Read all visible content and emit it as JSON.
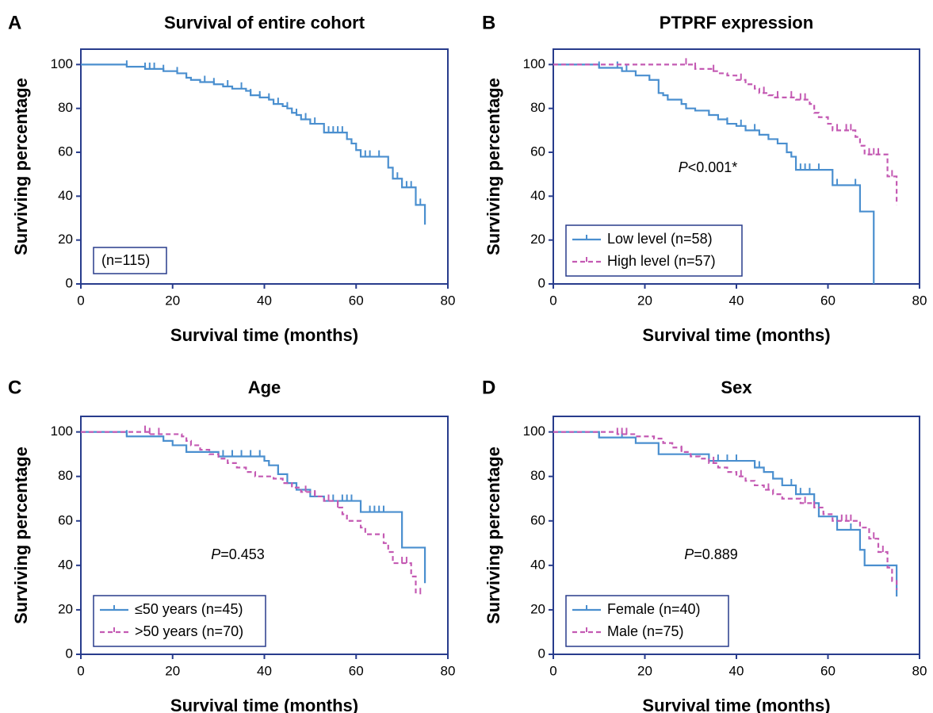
{
  "chart_data": [
    {
      "type": "line",
      "panel_label": "A",
      "title": "Survival of entire cohort",
      "xlabel": "Survival time (months)",
      "ylabel": "Surviving percentage",
      "xlim": [
        0,
        80
      ],
      "ylim": [
        0,
        107
      ],
      "xticks": [
        0,
        20,
        40,
        60,
        80
      ],
      "yticks": [
        0,
        20,
        40,
        60,
        80,
        100
      ],
      "note": "(n=115)",
      "series": [
        {
          "color": "#4a8fcf",
          "dashed": false,
          "x": [
            0,
            10,
            14,
            18,
            21,
            23,
            24,
            26,
            29,
            31,
            33,
            36,
            37,
            39,
            41,
            42,
            44,
            45,
            46,
            47,
            48,
            50,
            53,
            58,
            59,
            60,
            61,
            67,
            68,
            70,
            73,
            75
          ],
          "values": [
            100,
            99,
            98,
            97,
            96,
            94,
            93,
            92,
            91,
            90,
            89,
            88,
            86,
            85,
            84,
            82,
            81,
            80,
            78,
            77,
            75,
            73,
            69,
            66,
            64,
            61,
            58,
            53,
            48,
            44,
            36,
            27
          ],
          "censored": [
            10,
            14,
            15,
            16,
            18,
            21,
            27,
            29,
            32,
            35,
            37,
            39,
            41,
            43,
            45,
            47,
            49,
            51,
            54,
            55,
            56,
            57,
            62,
            63,
            65,
            69,
            71,
            72,
            74
          ]
        }
      ]
    },
    {
      "type": "line",
      "panel_label": "B",
      "title": "PTPRF expression",
      "xlabel": "Survival time (months)",
      "ylabel": "Surviving percentage",
      "xlim": [
        0,
        80
      ],
      "ylim": [
        0,
        107
      ],
      "xticks": [
        0,
        20,
        40,
        60,
        80
      ],
      "yticks": [
        0,
        20,
        40,
        60,
        80,
        100
      ],
      "legend": "lower left",
      "p_symbol": "P",
      "p_text": "<0.001*",
      "series": [
        {
          "name": "Low level (n=58)",
          "color": "#4a8fcf",
          "dashed": false,
          "x": [
            0,
            10,
            15,
            18,
            21,
            23,
            24,
            25,
            28,
            29,
            31,
            34,
            36,
            38,
            40,
            42,
            45,
            47,
            49,
            51,
            52,
            53,
            61,
            67,
            70
          ],
          "values": [
            100,
            98.5,
            97,
            95,
            93,
            87,
            86,
            84,
            82,
            80,
            79,
            77,
            75,
            73,
            72,
            70,
            68,
            66,
            64,
            60,
            58,
            52,
            45,
            33,
            0
          ],
          "censored": [
            10,
            14,
            16,
            38,
            41,
            44,
            54,
            55,
            56,
            58,
            62,
            66
          ]
        },
        {
          "name": "High level (n=57)",
          "color": "#c45ab3",
          "dashed": true,
          "x": [
            0,
            31,
            35,
            36,
            38,
            40,
            42,
            44,
            45,
            47,
            48,
            53,
            56,
            57,
            58,
            60,
            61,
            66,
            67,
            68,
            73,
            75
          ],
          "values": [
            100,
            98,
            97,
            96,
            95,
            93,
            91,
            89,
            87,
            86,
            85,
            84,
            82,
            78,
            76,
            73,
            70,
            67,
            63,
            59,
            49,
            36
          ],
          "censored": [
            29,
            31,
            35,
            41,
            46,
            49,
            52,
            54,
            55,
            62,
            64,
            65,
            69,
            70,
            71,
            74
          ]
        }
      ]
    },
    {
      "type": "line",
      "panel_label": "C",
      "title": "Age",
      "xlabel": "Survival time (months)",
      "ylabel": "Surviving percentage",
      "xlim": [
        0,
        80
      ],
      "ylim": [
        0,
        107
      ],
      "xticks": [
        0,
        20,
        40,
        60,
        80
      ],
      "yticks": [
        0,
        20,
        40,
        60,
        80,
        100
      ],
      "legend": "lower left",
      "p_symbol": "P",
      "p_text": "=0.453",
      "series": [
        {
          "name": "≤50 years (n=45)",
          "color": "#4a8fcf",
          "dashed": false,
          "x": [
            0,
            10,
            18,
            20,
            23,
            30,
            40,
            41,
            43,
            45,
            47,
            50,
            53,
            61,
            70,
            75
          ],
          "values": [
            100,
            98,
            96,
            94,
            91,
            89,
            87,
            85,
            81,
            77,
            74,
            71,
            69,
            64,
            48,
            32
          ],
          "censored": [
            10,
            31,
            33,
            35,
            37,
            39,
            43,
            55,
            57,
            58,
            59,
            63,
            64,
            65,
            66
          ]
        },
        {
          "name": ">50 years (n=70)",
          "color": "#c45ab3",
          "dashed": true,
          "x": [
            0,
            15,
            22,
            23,
            24,
            26,
            28,
            30,
            32,
            34,
            36,
            38,
            42,
            44,
            46,
            48,
            51,
            53,
            56,
            57,
            58,
            61,
            62,
            66,
            67,
            68,
            72,
            73
          ],
          "values": [
            100,
            99,
            98,
            96,
            94,
            92,
            90,
            88,
            86,
            84,
            82,
            80,
            79,
            77,
            75,
            73,
            71,
            69,
            66,
            63,
            60,
            57,
            54,
            50,
            46,
            41,
            35,
            27
          ],
          "censored": [
            14,
            15,
            17,
            49,
            51,
            54,
            56,
            70,
            71,
            74
          ]
        }
      ]
    },
    {
      "type": "line",
      "panel_label": "D",
      "title": "Sex",
      "xlabel": "Survival time (months)",
      "ylabel": "Surviving percentage",
      "xlim": [
        0,
        80
      ],
      "ylim": [
        0,
        107
      ],
      "xticks": [
        0,
        20,
        40,
        60,
        80
      ],
      "yticks": [
        0,
        20,
        40,
        60,
        80,
        100
      ],
      "legend": "lower left",
      "p_symbol": "P",
      "p_text": "=0.889",
      "series": [
        {
          "name": "Female (n=40)",
          "color": "#4a8fcf",
          "dashed": false,
          "x": [
            0,
            10,
            18,
            23,
            34,
            44,
            46,
            48,
            50,
            53,
            57,
            58,
            62,
            67,
            68,
            75
          ],
          "values": [
            100,
            97.5,
            95,
            90,
            87,
            84,
            82,
            79,
            76,
            72,
            68,
            62,
            56,
            47,
            40,
            26
          ],
          "censored": [
            10,
            15,
            36,
            38,
            40,
            44,
            45,
            52,
            54,
            56,
            65
          ]
        },
        {
          "name": "Male (n=75)",
          "color": "#c45ab3",
          "dashed": true,
          "x": [
            0,
            14,
            18,
            22,
            24,
            26,
            28,
            30,
            32,
            34,
            36,
            38,
            40,
            42,
            44,
            46,
            48,
            50,
            54,
            57,
            59,
            61,
            67,
            69,
            71,
            73,
            74,
            75
          ],
          "values": [
            100,
            99,
            98,
            97,
            95,
            93,
            91,
            89,
            88,
            86,
            84,
            82,
            80,
            78,
            76,
            74,
            72,
            70,
            68,
            66,
            63,
            60,
            57,
            52,
            46,
            39,
            33,
            29
          ],
          "censored": [
            14,
            15,
            16,
            28,
            35,
            41,
            47,
            55,
            57,
            63,
            64,
            65,
            70,
            72
          ]
        }
      ]
    }
  ]
}
